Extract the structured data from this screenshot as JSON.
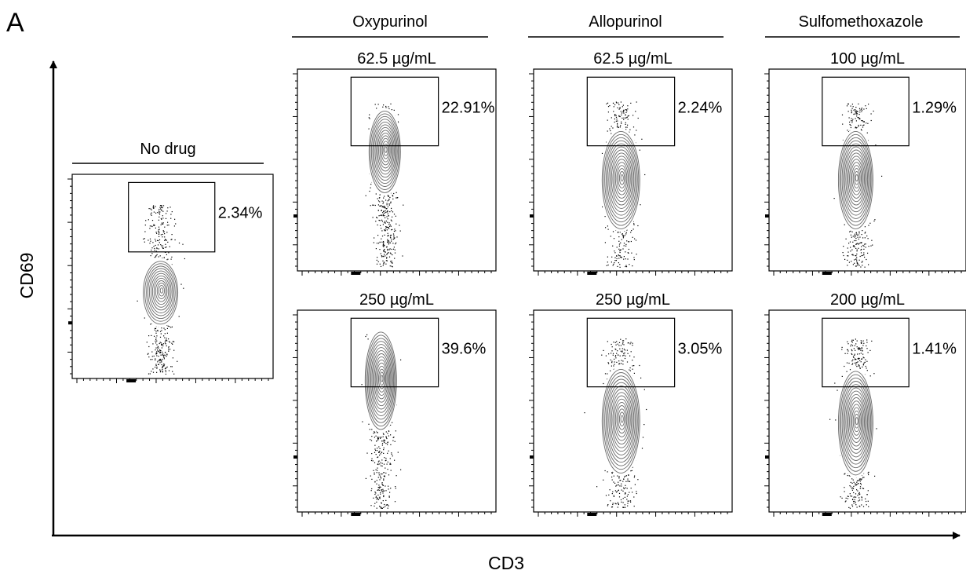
{
  "figure": {
    "panel_label": "A",
    "x_axis_label": "CD3",
    "y_axis_label": "CD69"
  },
  "chart_data": [
    {
      "type": "contour",
      "group": "No drug",
      "concentration": "",
      "gate_percent": "2.34%",
      "gate_fraction": 0.0234,
      "population_center": {
        "cd3": 0.44,
        "cd69": 0.58
      }
    },
    {
      "type": "contour",
      "group": "Oxypurinol",
      "concentration": "62.5 µg/mL",
      "gate_percent": "22.91%",
      "gate_fraction": 0.2291,
      "population_center": {
        "cd3": 0.44,
        "cd69": 0.41
      }
    },
    {
      "type": "contour",
      "group": "Oxypurinol",
      "concentration": "250 µg/mL",
      "gate_percent": "39.6%",
      "gate_fraction": 0.396,
      "population_center": {
        "cd3": 0.42,
        "cd69": 0.35
      }
    },
    {
      "type": "contour",
      "group": "Allopurinol",
      "concentration": "62.5 µg/mL",
      "gate_percent": "2.24%",
      "gate_fraction": 0.0224,
      "population_center": {
        "cd3": 0.44,
        "cd69": 0.55
      }
    },
    {
      "type": "contour",
      "group": "Allopurinol",
      "concentration": "250 µg/mL",
      "gate_percent": "3.05%",
      "gate_fraction": 0.0305,
      "population_center": {
        "cd3": 0.44,
        "cd69": 0.55
      }
    },
    {
      "type": "contour",
      "group": "Sulfomethoxazole",
      "concentration": "100 µg/mL",
      "gate_percent": "1.29%",
      "gate_fraction": 0.0129,
      "population_center": {
        "cd3": 0.44,
        "cd69": 0.55
      }
    },
    {
      "type": "contour",
      "group": "Sulfomethoxazole",
      "concentration": "200 µg/mL",
      "gate_percent": "1.41%",
      "gate_fraction": 0.0141,
      "population_center": {
        "cd3": 0.44,
        "cd69": 0.56
      }
    }
  ]
}
